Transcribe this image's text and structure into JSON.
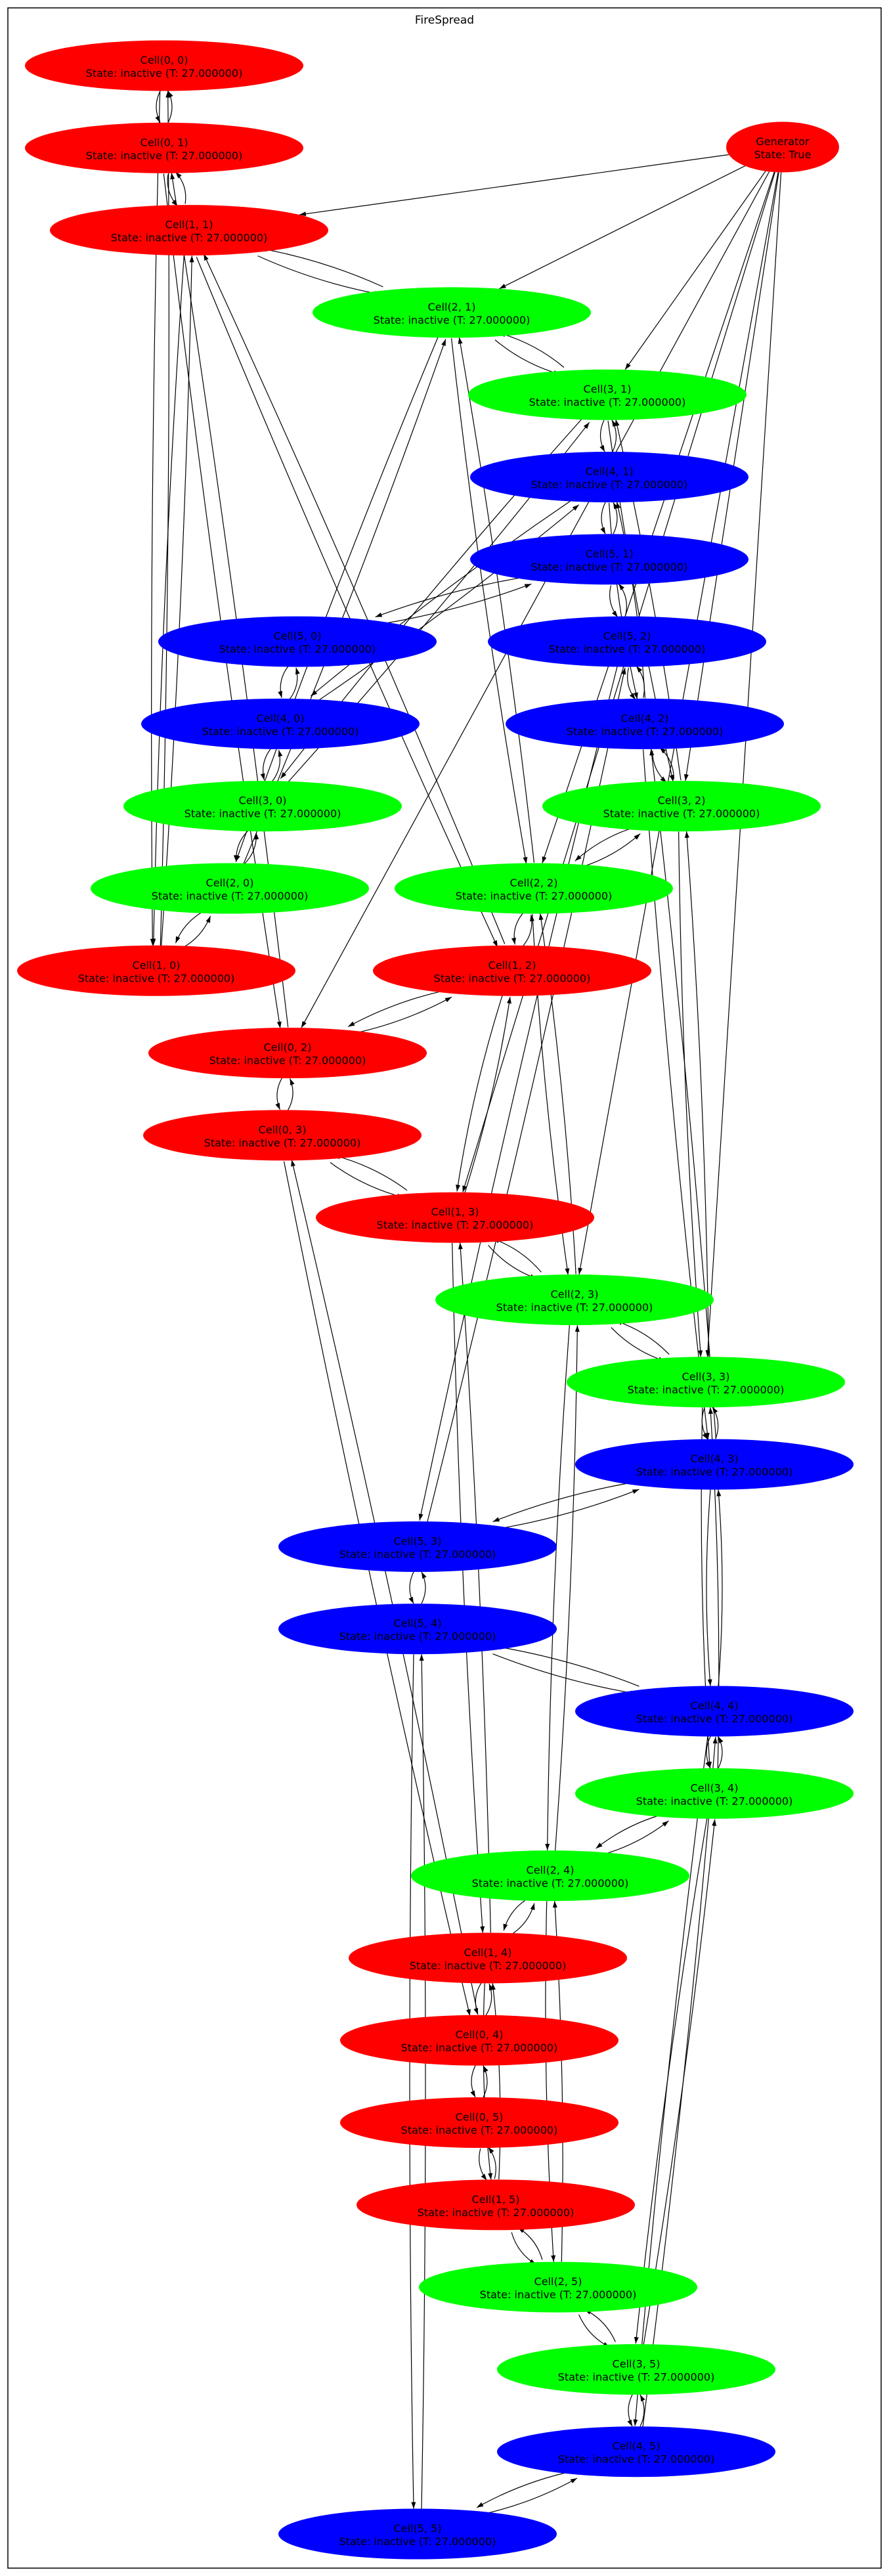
{
  "graph": {
    "title": "FireSpread",
    "colors": {
      "red": "#ff0000",
      "green": "#00ff00",
      "blue": "#0000ff",
      "edge": "#000000",
      "border": "#000000"
    },
    "generator": {
      "id": "gen",
      "label": "Generator",
      "state": "State: True",
      "color": "#ff0000"
    },
    "cell_state": "State: inactive (T: 27.000000)",
    "nodes": [
      {
        "id": "c00",
        "label": "Cell(0, 0)",
        "color": "#ff0000"
      },
      {
        "id": "c01",
        "label": "Cell(0, 1)",
        "color": "#ff0000"
      },
      {
        "id": "c02",
        "label": "Cell(0, 2)",
        "color": "#ff0000"
      },
      {
        "id": "c03",
        "label": "Cell(0, 3)",
        "color": "#ff0000"
      },
      {
        "id": "c04",
        "label": "Cell(0, 4)",
        "color": "#ff0000"
      },
      {
        "id": "c05",
        "label": "Cell(0, 5)",
        "color": "#ff0000"
      },
      {
        "id": "c10",
        "label": "Cell(1, 0)",
        "color": "#ff0000"
      },
      {
        "id": "c11",
        "label": "Cell(1, 1)",
        "color": "#ff0000"
      },
      {
        "id": "c12",
        "label": "Cell(1, 2)",
        "color": "#ff0000"
      },
      {
        "id": "c13",
        "label": "Cell(1, 3)",
        "color": "#ff0000"
      },
      {
        "id": "c14",
        "label": "Cell(1, 4)",
        "color": "#ff0000"
      },
      {
        "id": "c15",
        "label": "Cell(1, 5)",
        "color": "#ff0000"
      },
      {
        "id": "c20",
        "label": "Cell(2, 0)",
        "color": "#00ff00"
      },
      {
        "id": "c21",
        "label": "Cell(2, 1)",
        "color": "#00ff00"
      },
      {
        "id": "c22",
        "label": "Cell(2, 2)",
        "color": "#00ff00"
      },
      {
        "id": "c23",
        "label": "Cell(2, 3)",
        "color": "#00ff00"
      },
      {
        "id": "c24",
        "label": "Cell(2, 4)",
        "color": "#00ff00"
      },
      {
        "id": "c25",
        "label": "Cell(2, 5)",
        "color": "#00ff00"
      },
      {
        "id": "c30",
        "label": "Cell(3, 0)",
        "color": "#00ff00"
      },
      {
        "id": "c31",
        "label": "Cell(3, 1)",
        "color": "#00ff00"
      },
      {
        "id": "c32",
        "label": "Cell(3, 2)",
        "color": "#00ff00"
      },
      {
        "id": "c33",
        "label": "Cell(3, 3)",
        "color": "#00ff00"
      },
      {
        "id": "c34",
        "label": "Cell(3, 4)",
        "color": "#00ff00"
      },
      {
        "id": "c35",
        "label": "Cell(3, 5)",
        "color": "#00ff00"
      },
      {
        "id": "c40",
        "label": "Cell(4, 0)",
        "color": "#0000ff"
      },
      {
        "id": "c41",
        "label": "Cell(4, 1)",
        "color": "#0000ff"
      },
      {
        "id": "c42",
        "label": "Cell(4, 2)",
        "color": "#0000ff"
      },
      {
        "id": "c43",
        "label": "Cell(4, 3)",
        "color": "#0000ff"
      },
      {
        "id": "c44",
        "label": "Cell(4, 4)",
        "color": "#0000ff"
      },
      {
        "id": "c45",
        "label": "Cell(4, 5)",
        "color": "#0000ff"
      },
      {
        "id": "c50",
        "label": "Cell(5, 0)",
        "color": "#0000ff"
      },
      {
        "id": "c51",
        "label": "Cell(5, 1)",
        "color": "#0000ff"
      },
      {
        "id": "c52",
        "label": "Cell(5, 2)",
        "color": "#0000ff"
      },
      {
        "id": "c53",
        "label": "Cell(5, 3)",
        "color": "#0000ff"
      },
      {
        "id": "c54",
        "label": "Cell(5, 4)",
        "color": "#0000ff"
      },
      {
        "id": "c55",
        "label": "Cell(5, 5)",
        "color": "#0000ff"
      }
    ],
    "bidirectional_edges": [
      [
        "c00",
        "c01"
      ],
      [
        "c01",
        "c02"
      ],
      [
        "c02",
        "c03"
      ],
      [
        "c03",
        "c04"
      ],
      [
        "c04",
        "c05"
      ],
      [
        "c10",
        "c11"
      ],
      [
        "c11",
        "c12"
      ],
      [
        "c12",
        "c13"
      ],
      [
        "c13",
        "c14"
      ],
      [
        "c14",
        "c15"
      ],
      [
        "c20",
        "c21"
      ],
      [
        "c21",
        "c22"
      ],
      [
        "c22",
        "c23"
      ],
      [
        "c23",
        "c24"
      ],
      [
        "c24",
        "c25"
      ],
      [
        "c30",
        "c31"
      ],
      [
        "c31",
        "c32"
      ],
      [
        "c32",
        "c33"
      ],
      [
        "c33",
        "c34"
      ],
      [
        "c34",
        "c35"
      ],
      [
        "c40",
        "c41"
      ],
      [
        "c41",
        "c42"
      ],
      [
        "c42",
        "c43"
      ],
      [
        "c43",
        "c44"
      ],
      [
        "c44",
        "c45"
      ],
      [
        "c50",
        "c51"
      ],
      [
        "c51",
        "c52"
      ],
      [
        "c52",
        "c53"
      ],
      [
        "c53",
        "c54"
      ],
      [
        "c54",
        "c55"
      ],
      [
        "c00",
        "c10"
      ],
      [
        "c10",
        "c20"
      ],
      [
        "c20",
        "c30"
      ],
      [
        "c30",
        "c40"
      ],
      [
        "c40",
        "c50"
      ],
      [
        "c01",
        "c11"
      ],
      [
        "c11",
        "c21"
      ],
      [
        "c21",
        "c31"
      ],
      [
        "c31",
        "c41"
      ],
      [
        "c41",
        "c51"
      ],
      [
        "c02",
        "c12"
      ],
      [
        "c12",
        "c22"
      ],
      [
        "c22",
        "c32"
      ],
      [
        "c32",
        "c42"
      ],
      [
        "c42",
        "c52"
      ],
      [
        "c03",
        "c13"
      ],
      [
        "c13",
        "c23"
      ],
      [
        "c23",
        "c33"
      ],
      [
        "c33",
        "c43"
      ],
      [
        "c43",
        "c53"
      ],
      [
        "c04",
        "c14"
      ],
      [
        "c14",
        "c24"
      ],
      [
        "c24",
        "c34"
      ],
      [
        "c34",
        "c44"
      ],
      [
        "c44",
        "c54"
      ],
      [
        "c05",
        "c15"
      ],
      [
        "c15",
        "c25"
      ],
      [
        "c25",
        "c35"
      ],
      [
        "c35",
        "c45"
      ],
      [
        "c45",
        "c55"
      ]
    ],
    "generator_edges": [
      "c11",
      "c21",
      "c02",
      "c31",
      "c22",
      "c32",
      "c13",
      "c23",
      "c33"
    ]
  }
}
